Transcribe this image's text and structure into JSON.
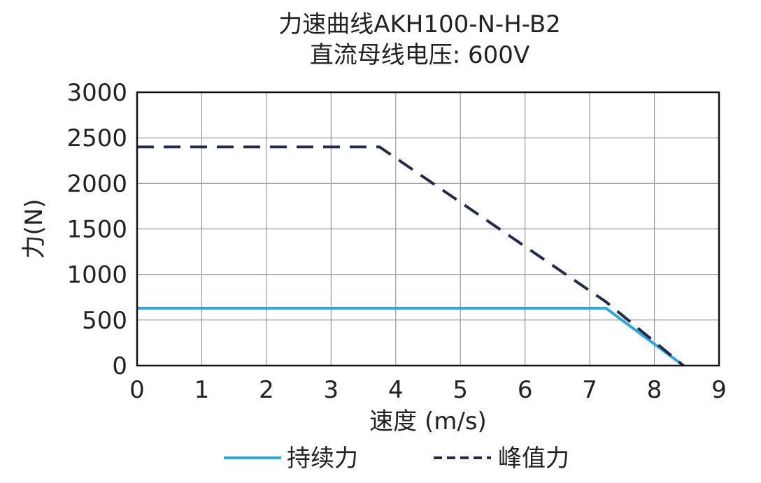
{
  "chart_data": {
    "type": "line",
    "title": "力速曲线AKH100-N-H-B2",
    "subtitle": "直流母线电压: 600V",
    "xlabel": "速度 (m/s)",
    "ylabel": "力(N)",
    "xlim": [
      0,
      9
    ],
    "ylim": [
      0,
      3000
    ],
    "xticks": [
      "0",
      "1",
      "2",
      "3",
      "4",
      "5",
      "6",
      "7",
      "8",
      "9"
    ],
    "yticks": [
      "0",
      "500",
      "1000",
      "1500",
      "2000",
      "2500",
      "3000"
    ],
    "grid": true,
    "legend_position": "bottom",
    "series": [
      {
        "name": "持续力",
        "style": "solid",
        "color": "#2ea6e0",
        "points": [
          [
            0,
            630
          ],
          [
            7.25,
            630
          ],
          [
            8.45,
            0
          ]
        ]
      },
      {
        "name": "峰值力",
        "style": "dashed",
        "color": "#25294a",
        "points": [
          [
            0,
            2400
          ],
          [
            3.75,
            2400
          ],
          [
            7.25,
            700
          ],
          [
            8.45,
            0
          ]
        ]
      }
    ]
  }
}
